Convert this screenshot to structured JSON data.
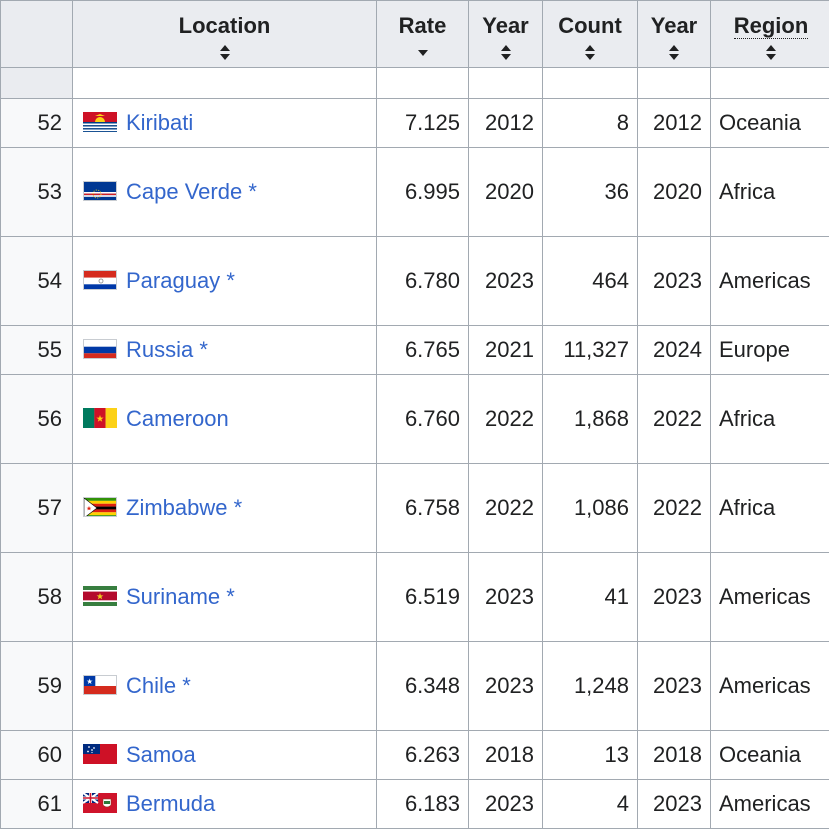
{
  "headers": {
    "location": "Location",
    "rate": "Rate",
    "year1": "Year",
    "count": "Count",
    "year2": "Year",
    "region": "Region"
  },
  "colors": {
    "link": "#3366cc",
    "header_bg": "#eaecf0",
    "border": "#a2a9b1"
  },
  "rows": [
    {
      "rank": "52",
      "name": "Kiribati",
      "star": "",
      "flag": "kiribati-flag-icon",
      "rate": "7.125",
      "year1": "2012",
      "count": "8",
      "year2": "2012",
      "region": "Oceania"
    },
    {
      "rank": "53",
      "name": "Cape Verde",
      "star": "*",
      "flag": "cape-verde-flag-icon",
      "rate": "6.995",
      "year1": "2020",
      "count": "36",
      "year2": "2020",
      "region": "Africa"
    },
    {
      "rank": "54",
      "name": "Paraguay",
      "star": "*",
      "flag": "paraguay-flag-icon",
      "rate": "6.780",
      "year1": "2023",
      "count": "464",
      "year2": "2023",
      "region": "Americas"
    },
    {
      "rank": "55",
      "name": "Russia",
      "star": "*",
      "flag": "russia-flag-icon",
      "rate": "6.765",
      "year1": "2021",
      "count": "11,327",
      "year2": "2024",
      "region": "Europe"
    },
    {
      "rank": "56",
      "name": "Cameroon",
      "star": "",
      "flag": "cameroon-flag-icon",
      "rate": "6.760",
      "year1": "2022",
      "count": "1,868",
      "year2": "2022",
      "region": "Africa"
    },
    {
      "rank": "57",
      "name": "Zimbabwe",
      "star": "*",
      "flag": "zimbabwe-flag-icon",
      "rate": "6.758",
      "year1": "2022",
      "count": "1,086",
      "year2": "2022",
      "region": "Africa"
    },
    {
      "rank": "58",
      "name": "Suriname",
      "star": "*",
      "flag": "suriname-flag-icon",
      "rate": "6.519",
      "year1": "2023",
      "count": "41",
      "year2": "2023",
      "region": "Americas"
    },
    {
      "rank": "59",
      "name": "Chile",
      "star": "*",
      "flag": "chile-flag-icon",
      "rate": "6.348",
      "year1": "2023",
      "count": "1,248",
      "year2": "2023",
      "region": "Americas"
    },
    {
      "rank": "60",
      "name": "Samoa",
      "star": "",
      "flag": "samoa-flag-icon",
      "rate": "6.263",
      "year1": "2018",
      "count": "13",
      "year2": "2018",
      "region": "Oceania"
    },
    {
      "rank": "61",
      "name": "Bermuda",
      "star": "",
      "flag": "bermuda-flag-icon",
      "rate": "6.183",
      "year1": "2023",
      "count": "4",
      "year2": "2023",
      "region": "Americas"
    }
  ]
}
